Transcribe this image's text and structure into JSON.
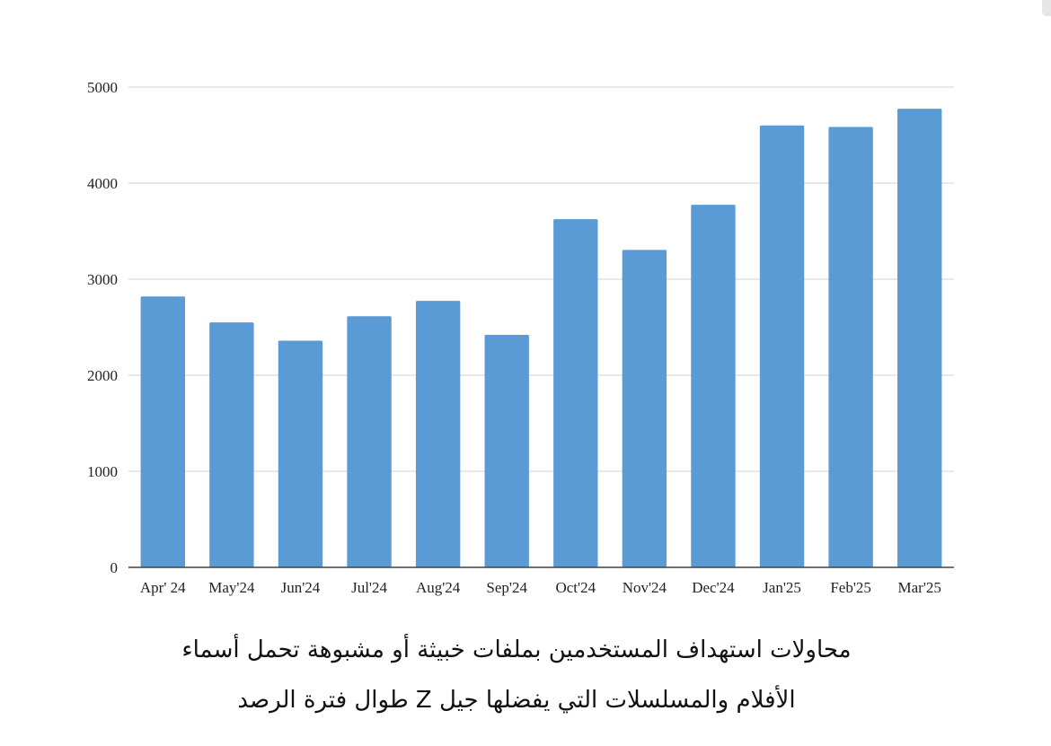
{
  "chart_data": {
    "type": "bar",
    "categories": [
      "Apr' 24",
      "May'24",
      "Jun'24",
      "Jul'24",
      "Aug'24",
      "Sep'24",
      "Oct'24",
      "Nov'24",
      "Dec'24",
      "Jan'25",
      "Feb'25",
      "Mar'25"
    ],
    "values": [
      2820,
      2550,
      2360,
      2615,
      2775,
      2420,
      3625,
      3305,
      3775,
      4600,
      4585,
      4775
    ],
    "ylim": [
      0,
      5000
    ],
    "yticks": [
      0,
      1000,
      2000,
      3000,
      4000,
      5000
    ],
    "grid": true,
    "bar_color": "#5b9bd5",
    "grid_color": "#d0d0d0",
    "axis_color": "#444444"
  },
  "caption": {
    "line1": "محاولات استهداف المستخدمين بملفات خبيثة أو مشبوهة تحمل أسماء",
    "line2": "الأفلام والمسلسلات التي يفضلها جيل Z طوال فترة الرصد"
  }
}
